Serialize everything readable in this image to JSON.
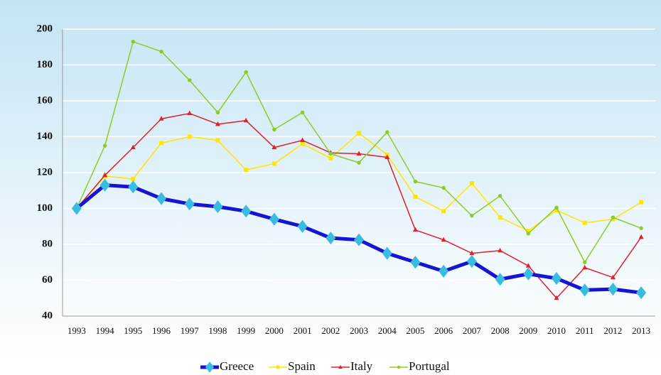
{
  "chart_data": {
    "type": "line",
    "categories": [
      "1993",
      "1994",
      "1995",
      "1996",
      "1997",
      "1998",
      "1999",
      "2000",
      "2001",
      "2002",
      "2003",
      "2004",
      "2005",
      "2006",
      "2007",
      "2008",
      "2009",
      "2010",
      "2011",
      "2012",
      "2013"
    ],
    "series": [
      {
        "name": "Greece",
        "color": "#1414d2",
        "marker_color": "#38bde0",
        "values": [
          100,
          113,
          112,
          105.5,
          102.5,
          101,
          98.5,
          94,
          90,
          83.5,
          82.5,
          75,
          70,
          65,
          70.5,
          60.5,
          63.5,
          61,
          54.5,
          55,
          53
        ]
      },
      {
        "name": "Spain",
        "color": "#ffe600",
        "marker_color": "#ffe600",
        "values": [
          100,
          118,
          116.5,
          136.5,
          140,
          138,
          121.5,
          125,
          136,
          128,
          142,
          130,
          106.5,
          98.5,
          114,
          95,
          87.5,
          99,
          92,
          94,
          103.5
        ]
      },
      {
        "name": "Italy",
        "color": "#e0202a",
        "marker_color": "#e0202a",
        "values": [
          100,
          118.5,
          134,
          150,
          153,
          147,
          149,
          134,
          138,
          131,
          130.5,
          128.5,
          88,
          82.5,
          75,
          76.5,
          68,
          50,
          67,
          61.5,
          84
        ]
      },
      {
        "name": "Portugal",
        "color": "#8ccc28",
        "marker_color": "#8ccc28",
        "values": [
          100,
          135,
          193,
          187.5,
          171.5,
          153.5,
          176,
          144,
          153.5,
          130.5,
          125.5,
          142.5,
          115,
          111.5,
          96,
          107,
          86,
          100.5,
          70,
          95,
          89
        ]
      }
    ],
    "ylim": [
      40,
      200
    ],
    "yticks": [
      40,
      60,
      80,
      100,
      120,
      140,
      160,
      180,
      200
    ],
    "grid": true,
    "legend": "bottom"
  }
}
